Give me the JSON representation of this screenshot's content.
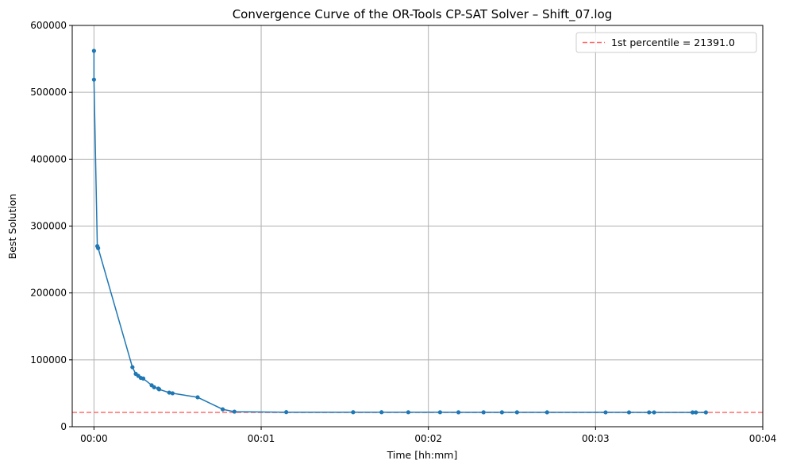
{
  "chart_data": {
    "type": "line",
    "title": "Convergence Curve of the OR-Tools CP-SAT Solver – Shift_07.log",
    "xlabel": "Time [hh:mm]",
    "ylabel": "Best Solution",
    "x_unit": "minutes",
    "xlim": [
      -0.13,
      4.0
    ],
    "ylim": [
      0,
      600000
    ],
    "x_ticks": [
      0,
      1,
      2,
      3,
      4
    ],
    "x_tick_labels": [
      "00:00",
      "00:01",
      "00:02",
      "00:03",
      "00:04"
    ],
    "y_ticks": [
      0,
      100000,
      200000,
      300000,
      400000,
      500000,
      600000
    ],
    "y_tick_labels": [
      "0",
      "100000",
      "200000",
      "300000",
      "400000",
      "500000",
      "600000"
    ],
    "grid": true,
    "legend_position": "top-right",
    "series": [
      {
        "color": "#1f77b4",
        "x": [
          0.0,
          0.0,
          0.02,
          0.025,
          0.23,
          0.25,
          0.265,
          0.28,
          0.295,
          0.345,
          0.36,
          0.385,
          0.39,
          0.45,
          0.47,
          0.62,
          0.77,
          0.84,
          1.15,
          1.55,
          1.72,
          1.88,
          2.07,
          2.18,
          2.33,
          2.44,
          2.53,
          2.71,
          3.06,
          3.2,
          3.32,
          3.35,
          3.58,
          3.6,
          3.66
        ],
        "y": [
          562000,
          519000,
          270000,
          267000,
          89000,
          79000,
          76000,
          73000,
          72000,
          62000,
          59000,
          57000,
          56000,
          51000,
          50000,
          44000,
          26000,
          22500,
          21800,
          21700,
          21650,
          21600,
          21580,
          21560,
          21540,
          21520,
          21510,
          21500,
          21480,
          21460,
          21440,
          21430,
          21410,
          21400,
          21395
        ]
      }
    ],
    "reference_lines": [
      {
        "label": "1st percentile  = 21391.0",
        "y": 21391.0,
        "color": "#ff6b6b",
        "style": "dashed"
      }
    ]
  }
}
